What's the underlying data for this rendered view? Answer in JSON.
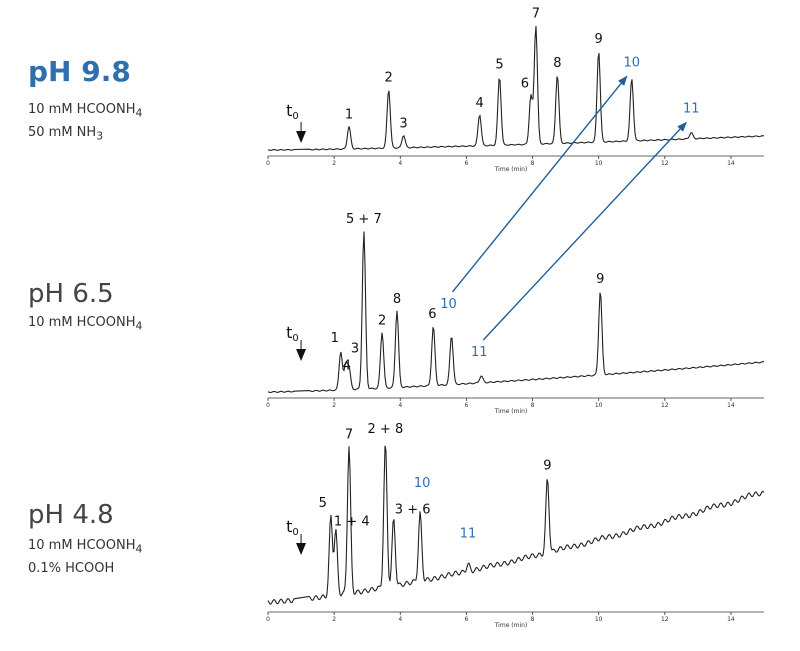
{
  "panels": [
    {
      "title": "pH 9.8",
      "conditions": [
        {
          "text": "10 mM HCOONH",
          "sub": "4"
        },
        {
          "text": "50 mM NH",
          "sub": "3"
        }
      ]
    },
    {
      "title": "pH 6.5",
      "conditions": [
        {
          "text": "10 mM HCOONH",
          "sub": "4"
        }
      ]
    },
    {
      "title": "pH 4.8",
      "conditions": [
        {
          "text": "10 mM HCOONH",
          "sub": "4"
        },
        {
          "text": "0.1% HCOOH",
          "sub": ""
        }
      ]
    }
  ],
  "chart_data": [
    {
      "type": "line",
      "title": "pH 9.8",
      "xlabel": "Time (min)",
      "xlim": [
        0,
        15
      ],
      "x_ticks": [
        "0",
        "2",
        "4",
        "6",
        "8",
        "10",
        "12",
        "14"
      ],
      "t0": {
        "label": "t",
        "sub": "0",
        "x": 1.0
      },
      "peaks": [
        {
          "label": "1",
          "x": 2.45,
          "h": 0.18,
          "color": "#111111"
        },
        {
          "label": "2",
          "x": 3.65,
          "h": 0.47,
          "color": "#111111"
        },
        {
          "label": "3",
          "x": 4.1,
          "h": 0.1,
          "color": "#111111"
        },
        {
          "label": "4",
          "x": 6.4,
          "h": 0.25,
          "color": "#111111"
        },
        {
          "label": "5",
          "x": 7.0,
          "h": 0.55,
          "color": "#111111"
        },
        {
          "label": "6",
          "x": 7.95,
          "h": 0.39,
          "color": "#111111"
        },
        {
          "label": "7",
          "x": 8.1,
          "h": 0.95,
          "color": "#111111"
        },
        {
          "label": "8",
          "x": 8.75,
          "h": 0.55,
          "color": "#111111"
        },
        {
          "label": "9",
          "x": 10.0,
          "h": 0.73,
          "color": "#111111"
        },
        {
          "label": "10",
          "x": 11.0,
          "h": 0.5,
          "color": "#2f6fad"
        },
        {
          "label": "11",
          "x": 12.8,
          "h": 0.05,
          "color": "#2f6fad"
        }
      ]
    },
    {
      "type": "line",
      "title": "pH 6.5",
      "xlabel": "Time (min)",
      "xlim": [
        0,
        15
      ],
      "x_ticks": [
        "0",
        "2",
        "4",
        "6",
        "8",
        "10",
        "12",
        "14"
      ],
      "t0": {
        "label": "t",
        "sub": "0",
        "x": 1.0
      },
      "peaks": [
        {
          "label": "1",
          "x": 2.2,
          "h": 0.22,
          "color": "#111111"
        },
        {
          "label": "4",
          "x": 2.35,
          "h": 0.14,
          "color": "#111111"
        },
        {
          "label": "3",
          "x": 2.45,
          "h": 0.12,
          "color": "#111111"
        },
        {
          "label": "5 + 7",
          "x": 2.9,
          "h": 0.9,
          "color": "#111111"
        },
        {
          "label": "2",
          "x": 3.45,
          "h": 0.32,
          "color": "#111111"
        },
        {
          "label": "8",
          "x": 3.9,
          "h": 0.44,
          "color": "#111111"
        },
        {
          "label": "6",
          "x": 5.0,
          "h": 0.34,
          "color": "#111111"
        },
        {
          "label": "10",
          "x": 5.55,
          "h": 0.28,
          "color": "#2f6fad"
        },
        {
          "label": "11",
          "x": 6.45,
          "h": 0.04,
          "color": "#2f6fad"
        },
        {
          "label": "9",
          "x": 10.05,
          "h": 0.48,
          "color": "#111111"
        }
      ]
    },
    {
      "type": "line",
      "title": "pH 4.8",
      "xlabel": "Time (min)",
      "xlim": [
        0,
        15
      ],
      "x_ticks": [
        "0",
        "2",
        "4",
        "6",
        "8",
        "10",
        "12",
        "14"
      ],
      "t0": {
        "label": "t",
        "sub": "0",
        "x": 1.0
      },
      "peaks": [
        {
          "label": "5",
          "x": 1.9,
          "h": 0.53,
          "color": "#111111"
        },
        {
          "label": "1 + 4",
          "x": 2.05,
          "h": 0.43,
          "color": "#111111"
        },
        {
          "label": "7",
          "x": 2.45,
          "h": 0.98,
          "color": "#111111"
        },
        {
          "label": "2 + 8",
          "x": 3.55,
          "h": 0.96,
          "color": "#111111"
        },
        {
          "label": "3 + 6",
          "x": 3.8,
          "h": 0.45,
          "color": "#111111"
        },
        {
          "label": "10",
          "x": 4.6,
          "h": 0.45,
          "color": "#2f6fad"
        },
        {
          "label": "11",
          "x": 6.05,
          "h": 0.05,
          "color": "#2f6fad"
        },
        {
          "label": "9",
          "x": 8.45,
          "h": 0.5,
          "color": "#111111"
        }
      ]
    }
  ],
  "arrows": [
    {
      "name": "arrow-peak-10",
      "from_panel": 1,
      "from_peak": "10",
      "to_panel": 0,
      "to_peak": "10",
      "color": "#1f5f99"
    },
    {
      "name": "arrow-peak-11",
      "from_panel": 1,
      "from_peak": "11",
      "to_panel": 0,
      "to_peak": "11",
      "color": "#1f5f99"
    }
  ]
}
